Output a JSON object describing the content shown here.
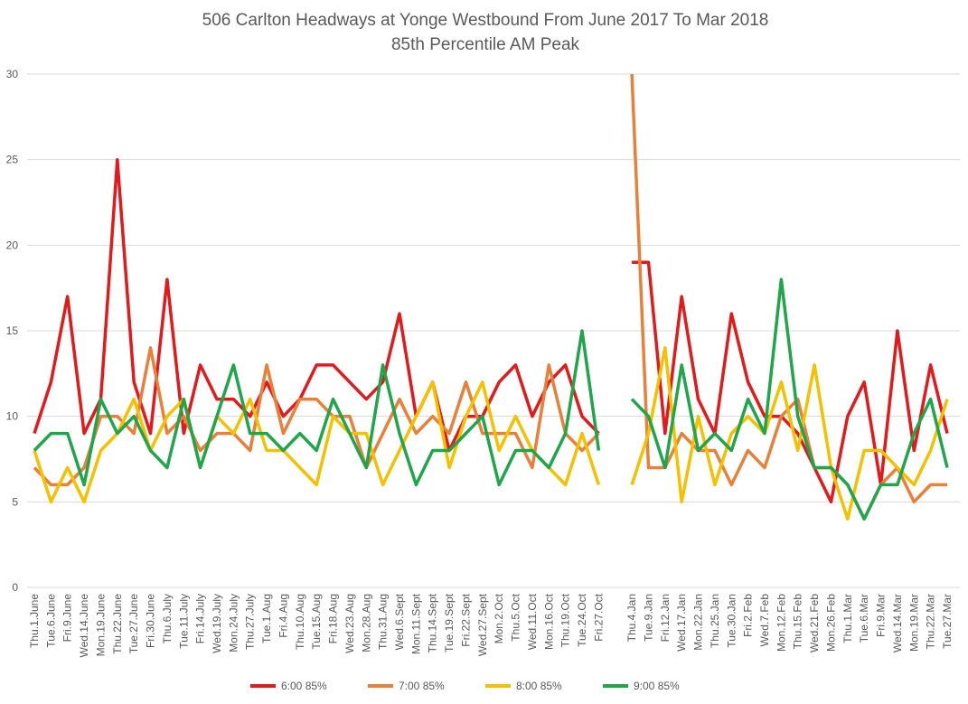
{
  "chart_data": {
    "type": "line",
    "title": "506 Carlton Headways at Yonge Westbound From June 2017 To Mar 2018",
    "subtitle": "85th Percentile AM Peak",
    "categories": [
      "Thu.1.June",
      "Tue.6.June",
      "Fri.9.June",
      "Wed.14.June",
      "Mon.19.June",
      "Thu.22.June",
      "Tue.27.June",
      "Fri.30.June",
      "Thu.6.July",
      "Tue.11.July",
      "Fri.14.July",
      "Wed.19.July",
      "Mon.24.July",
      "Thu.27.July",
      "Tue.1.Aug",
      "Fri.4.Aug",
      "Thu.10.Aug",
      "Tue.15.Aug",
      "Fri.18.Aug",
      "Wed.23.Aug",
      "Mon.28.Aug",
      "Thu.31.Aug",
      "Wed.6.Sept",
      "Mon.11.Sept",
      "Thu.14.Sept",
      "Tue.19.Sept",
      "Fri.22.Sept",
      "Wed.27.Sept",
      "Mon.2.Oct",
      "Thu.5.Oct",
      "Wed.11.Oct",
      "Mon.16.Oct",
      "Thu.19.Oct",
      "Tue.24.Oct",
      "Fri.27.Oct",
      null,
      "Thu.4.Jan",
      "Tue.9.Jan",
      "Fri.12.Jan",
      "Wed.17.Jan",
      "Mon.22.Jan",
      "Thu.25.Jan",
      "Tue.30.Jan",
      "Fri.2.Feb",
      "Wed.7.Feb",
      "Mon.12.Feb",
      "Thu.15.Feb",
      "Wed.21.Feb",
      "Mon.26.Feb",
      "Thu.1.Mar",
      "Tue.6.Mar",
      "Fri.9.Mar",
      "Wed.14.Mar",
      "Mon.19.Mar",
      "Thu.22.Mar",
      "Tue.27.Mar"
    ],
    "series": [
      {
        "name": "6:00 85%",
        "color": "#e31a1c",
        "values": [
          9,
          12,
          17,
          9,
          11,
          25,
          12,
          9,
          18,
          9,
          13,
          11,
          11,
          10,
          12,
          10,
          11,
          13,
          13,
          12,
          11,
          12,
          16,
          10,
          12,
          8,
          10,
          10,
          12,
          13,
          10,
          12,
          13,
          10,
          9,
          null,
          19,
          19,
          9,
          17,
          11,
          9,
          16,
          12,
          10,
          10,
          9,
          7,
          5,
          10,
          12,
          6,
          15,
          8,
          13,
          9
        ]
      },
      {
        "name": "7:00 85%",
        "color": "#e8803a",
        "values": [
          7,
          6,
          6,
          7,
          10,
          10,
          9,
          14,
          9,
          10,
          8,
          9,
          9,
          8,
          13,
          9,
          11,
          11,
          10,
          10,
          7,
          9,
          11,
          9,
          10,
          9,
          12,
          9,
          9,
          9,
          7,
          13,
          9,
          8,
          9,
          null,
          30,
          7,
          7,
          9,
          8,
          8,
          6,
          8,
          7,
          10,
          11,
          7,
          7,
          6,
          4,
          6,
          7,
          5,
          6,
          6
        ]
      },
      {
        "name": "8:00 85%",
        "color": "#f5c000",
        "values": [
          8,
          5,
          7,
          5,
          8,
          9,
          11,
          8,
          10,
          11,
          7,
          10,
          9,
          11,
          8,
          8,
          7,
          6,
          10,
          9,
          9,
          6,
          8,
          10,
          12,
          7,
          10,
          12,
          8,
          10,
          8,
          7,
          6,
          9,
          6,
          null,
          6,
          9,
          14,
          5,
          10,
          6,
          9,
          10,
          9,
          12,
          8,
          13,
          7,
          4,
          8,
          8,
          7,
          6,
          8,
          11
        ]
      },
      {
        "name": "9:00 85%",
        "color": "#1fa64a",
        "values": [
          8,
          9,
          9,
          6,
          11,
          9,
          10,
          8,
          7,
          11,
          7,
          10,
          13,
          9,
          9,
          8,
          9,
          8,
          11,
          9,
          7,
          13,
          9,
          6,
          8,
          8,
          9,
          10,
          6,
          8,
          8,
          7,
          9,
          15,
          8,
          null,
          11,
          10,
          7,
          13,
          8,
          9,
          8,
          11,
          9,
          18,
          10,
          7,
          7,
          6,
          4,
          6,
          6,
          9,
          11,
          7
        ]
      }
    ],
    "ylim": [
      0,
      30
    ],
    "yticks": [
      0,
      5,
      10,
      15,
      20,
      25,
      30
    ],
    "grid": true,
    "legend": "bottom"
  }
}
